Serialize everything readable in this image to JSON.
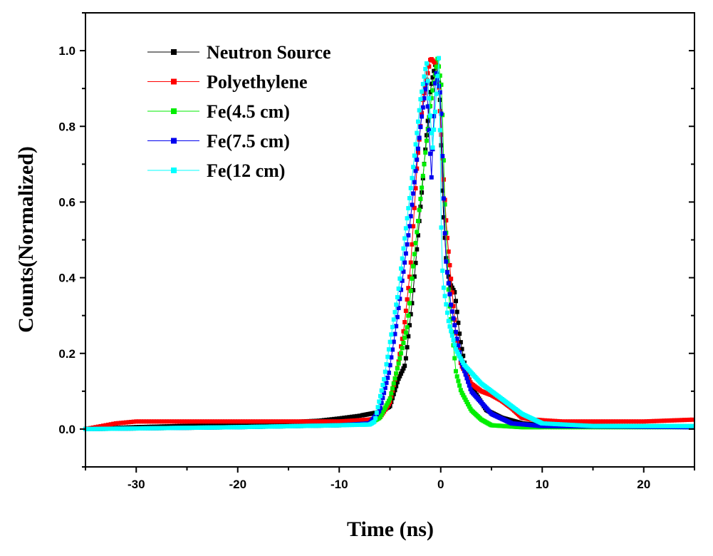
{
  "chart_data": {
    "type": "line",
    "title": "",
    "xlabel": "Time (ns)",
    "ylabel": "Counts(Normalized)",
    "xlim": [
      -35,
      25
    ],
    "ylim": [
      -0.1,
      1.1
    ],
    "xticks": [
      "-30",
      "-20",
      "-10",
      "0",
      "10",
      "20"
    ],
    "xtick_values": [
      -30,
      -20,
      -10,
      0,
      10,
      20
    ],
    "yticks": [
      "0.0",
      "0.2",
      "0.4",
      "0.6",
      "0.8",
      "1.0"
    ],
    "ytick_values": [
      0,
      0.2,
      0.4,
      0.6,
      0.8,
      1.0
    ],
    "grid": false,
    "legend_position": "top-left",
    "marker": "square",
    "series": [
      {
        "name": "Neutron Source",
        "color": "#000000",
        "points": [
          [
            -35,
            0.0
          ],
          [
            -30,
            0.005
          ],
          [
            -20,
            0.012
          ],
          [
            -12,
            0.022
          ],
          [
            -10,
            0.028
          ],
          [
            -8,
            0.035
          ],
          [
            -7,
            0.04
          ],
          [
            -6,
            0.045
          ],
          [
            -5,
            0.06
          ],
          [
            -4.2,
            0.13
          ],
          [
            -3.5,
            0.17
          ],
          [
            -2.8,
            0.34
          ],
          [
            -2.3,
            0.49
          ],
          [
            -1.6,
            0.71
          ],
          [
            -1.0,
            0.9
          ],
          [
            -0.5,
            0.97
          ],
          [
            -0.1,
            0.9
          ],
          [
            0.2,
            0.6
          ],
          [
            0.6,
            0.42
          ],
          [
            1.0,
            0.38
          ],
          [
            1.4,
            0.36
          ],
          [
            1.9,
            0.24
          ],
          [
            2.5,
            0.15
          ],
          [
            3.3,
            0.1
          ],
          [
            4.5,
            0.05
          ],
          [
            6,
            0.03
          ],
          [
            8,
            0.015
          ],
          [
            10,
            0.01
          ],
          [
            25,
            0.005
          ]
        ]
      },
      {
        "name": "Polyethylene",
        "color": "#ff0000",
        "points": [
          [
            -35,
            0.0
          ],
          [
            -32,
            0.015
          ],
          [
            -30,
            0.02
          ],
          [
            -20,
            0.02
          ],
          [
            -10,
            0.02
          ],
          [
            -7,
            0.025
          ],
          [
            -6,
            0.03
          ],
          [
            -5,
            0.07
          ],
          [
            -4.2,
            0.17
          ],
          [
            -3.6,
            0.27
          ],
          [
            -3.0,
            0.42
          ],
          [
            -2.6,
            0.58
          ],
          [
            -2.3,
            0.71
          ],
          [
            -1.75,
            0.87
          ],
          [
            -1.0,
            0.98
          ],
          [
            -0.3,
            0.96
          ],
          [
            0.2,
            0.7
          ],
          [
            0.6,
            0.52
          ],
          [
            1.0,
            0.4
          ],
          [
            1.5,
            0.25
          ],
          [
            2.0,
            0.17
          ],
          [
            3.0,
            0.12
          ],
          [
            4.0,
            0.1
          ],
          [
            5.0,
            0.09
          ],
          [
            6.0,
            0.075
          ],
          [
            7.0,
            0.055
          ],
          [
            8.0,
            0.03
          ],
          [
            9,
            0.025
          ],
          [
            12,
            0.02
          ],
          [
            20,
            0.02
          ],
          [
            25,
            0.025
          ]
        ]
      },
      {
        "name": "Fe(4.5 cm)",
        "color": "#00ee00",
        "points": [
          [
            -35,
            0.0
          ],
          [
            -20,
            0.005
          ],
          [
            -10,
            0.01
          ],
          [
            -7,
            0.015
          ],
          [
            -6,
            0.03
          ],
          [
            -5,
            0.08
          ],
          [
            -4.0,
            0.19
          ],
          [
            -3.3,
            0.27
          ],
          [
            -2.6,
            0.46
          ],
          [
            -1.9,
            0.63
          ],
          [
            -1.05,
            0.85
          ],
          [
            -0.3,
            0.98
          ],
          [
            0.1,
            0.9
          ],
          [
            0.4,
            0.6
          ],
          [
            0.8,
            0.35
          ],
          [
            1.5,
            0.15
          ],
          [
            2.0,
            0.1
          ],
          [
            3.0,
            0.05
          ],
          [
            4.0,
            0.025
          ],
          [
            5.0,
            0.01
          ],
          [
            8,
            0.005
          ],
          [
            25,
            0.005
          ]
        ]
      },
      {
        "name": "Fe(7.5 cm)",
        "color": "#0000ee",
        "points": [
          [
            -35,
            0.0
          ],
          [
            -20,
            0.005
          ],
          [
            -10,
            0.01
          ],
          [
            -7,
            0.015
          ],
          [
            -6,
            0.05
          ],
          [
            -5.1,
            0.15
          ],
          [
            -4.4,
            0.27
          ],
          [
            -3.7,
            0.41
          ],
          [
            -3.0,
            0.55
          ],
          [
            -2.4,
            0.7
          ],
          [
            -1.9,
            0.82
          ],
          [
            -1.4,
            0.92
          ],
          [
            -0.9,
            0.66
          ],
          [
            -0.5,
            0.95
          ],
          [
            0.0,
            0.88
          ],
          [
            0.3,
            0.6
          ],
          [
            0.5,
            0.45
          ],
          [
            1.0,
            0.33
          ],
          [
            2.0,
            0.18
          ],
          [
            3.0,
            0.1
          ],
          [
            5.0,
            0.04
          ],
          [
            7,
            0.015
          ],
          [
            10,
            0.008
          ],
          [
            25,
            0.005
          ]
        ]
      },
      {
        "name": "Fe(12 cm)",
        "color": "#00ffff",
        "points": [
          [
            -35,
            0.0
          ],
          [
            -20,
            0.005
          ],
          [
            -10,
            0.01
          ],
          [
            -7,
            0.012
          ],
          [
            -6.5,
            0.02
          ],
          [
            -5.6,
            0.13
          ],
          [
            -4.2,
            0.36
          ],
          [
            -2.8,
            0.67
          ],
          [
            -2.0,
            0.87
          ],
          [
            -1.4,
            0.97
          ],
          [
            -0.8,
            0.74
          ],
          [
            -0.14,
            1.0
          ],
          [
            0.0,
            0.58
          ],
          [
            0.2,
            0.39
          ],
          [
            0.8,
            0.28
          ],
          [
            1.5,
            0.21
          ],
          [
            2.3,
            0.17
          ],
          [
            4.0,
            0.12
          ],
          [
            6.5,
            0.07
          ],
          [
            8,
            0.04
          ],
          [
            10,
            0.015
          ],
          [
            15,
            0.008
          ],
          [
            25,
            0.008
          ]
        ]
      }
    ]
  }
}
